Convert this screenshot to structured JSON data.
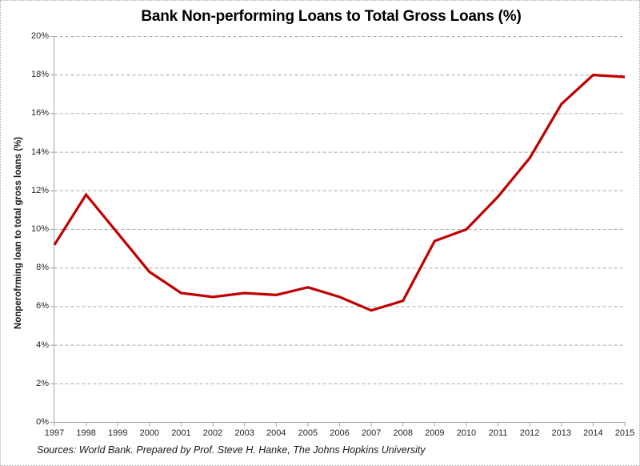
{
  "page": {
    "source_note": "Sources: World Bank. Prepared by Prof. Steve H. Hanke, The Johns Hopkins University"
  },
  "chart_data": {
    "type": "line",
    "title": "Bank Non-performing Loans to Total Gross Loans (%)",
    "xlabel": "",
    "ylabel": "Nonperofrming loan to total gross loans (%)",
    "x": [
      "1997",
      "1998",
      "1999",
      "2000",
      "2001",
      "2002",
      "2003",
      "2004",
      "2005",
      "2006",
      "2007",
      "2008",
      "2009",
      "2010",
      "2011",
      "2012",
      "2013",
      "2014",
      "2015"
    ],
    "series": [
      {
        "name": "Bank non-performing loans to total gross loans (%)",
        "color": "#C00000",
        "values": [
          9.2,
          11.8,
          9.8,
          7.8,
          6.7,
          6.5,
          6.7,
          6.6,
          7.0,
          6.5,
          5.8,
          6.3,
          9.4,
          10.0,
          11.7,
          13.7,
          16.5,
          18.0,
          17.9
        ]
      }
    ],
    "ylim": [
      0,
      20
    ],
    "ytick_step": 2,
    "ytick_labels": [
      "0%",
      "2%",
      "4%",
      "6%",
      "8%",
      "10%",
      "12%",
      "14%",
      "16%",
      "18%",
      "20%"
    ],
    "grid": "horizontal-dashed",
    "legend_position": "none"
  },
  "colors": {
    "line": "#C00000",
    "grid": "#A6A6A6",
    "axis": "#A6A6A6",
    "tick_text": "#262626",
    "title_text": "#000000",
    "page_border": "#AAAAAA"
  }
}
